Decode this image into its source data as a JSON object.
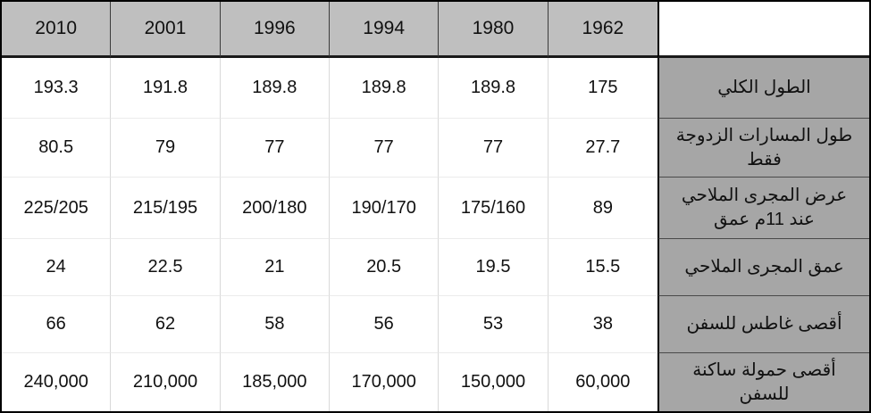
{
  "table": {
    "description_visible": false,
    "corner": "",
    "years": [
      "2010",
      "2001",
      "1996",
      "1994",
      "1980",
      "1962"
    ],
    "rows": [
      {
        "label": "الطول الكلي",
        "values": [
          "193.3",
          "191.8",
          "189.8",
          "189.8",
          "189.8",
          "175"
        ]
      },
      {
        "label": "طول المسارات الزدوجة فقط",
        "values": [
          "80.5",
          "79",
          "77",
          "77",
          "77",
          "27.7"
        ]
      },
      {
        "label": "عرض المجرى الملاحي\nعند 11م عمق",
        "values": [
          "225/205",
          "215/195",
          "200/180",
          "190/170",
          "175/160",
          "89"
        ]
      },
      {
        "label": "عمق المجرى الملاحي",
        "values": [
          "24",
          "22.5",
          "21",
          "20.5",
          "19.5",
          "15.5"
        ]
      },
      {
        "label": "أقصى غاطس للسفن",
        "values": [
          "66",
          "62",
          "58",
          "56",
          "53",
          "38"
        ]
      },
      {
        "label": "أقصى حمولة ساكنة للسفن",
        "values": [
          "240,000",
          "210,000",
          "185,000",
          "170,000",
          "150,000",
          "60,000"
        ]
      }
    ],
    "colors": {
      "header_bg": "#bfbfbf",
      "label_bg": "#a6a6a6",
      "cell_bg": "#ffffff",
      "outer_border": "#000000",
      "header_separator": "#3b3b3b",
      "grid_light": "#d9d9d9",
      "text": "#111111"
    }
  },
  "chart_data": {
    "type": "table",
    "title": "",
    "columns": [
      "2010",
      "2001",
      "1996",
      "1994",
      "1980",
      "1962"
    ],
    "row_headers": [
      "الطول الكلي",
      "طول المسارات الزدوجة فقط",
      "عرض المجرى الملاحي عند 11م عمق",
      "عمق المجرى الملاحي",
      "أقصى غاطس للسفن",
      "أقصى حمولة ساكنة للسفن"
    ],
    "cells": [
      [
        "193.3",
        "191.8",
        "189.8",
        "189.8",
        "189.8",
        "175"
      ],
      [
        "80.5",
        "79",
        "77",
        "77",
        "77",
        "27.7"
      ],
      [
        "225/205",
        "215/195",
        "200/180",
        "190/170",
        "175/160",
        "89"
      ],
      [
        "24",
        "22.5",
        "21",
        "20.5",
        "19.5",
        "15.5"
      ],
      [
        "66",
        "62",
        "58",
        "56",
        "53",
        "38"
      ],
      [
        "240,000",
        "210,000",
        "185,000",
        "170,000",
        "150,000",
        "60,000"
      ]
    ]
  }
}
